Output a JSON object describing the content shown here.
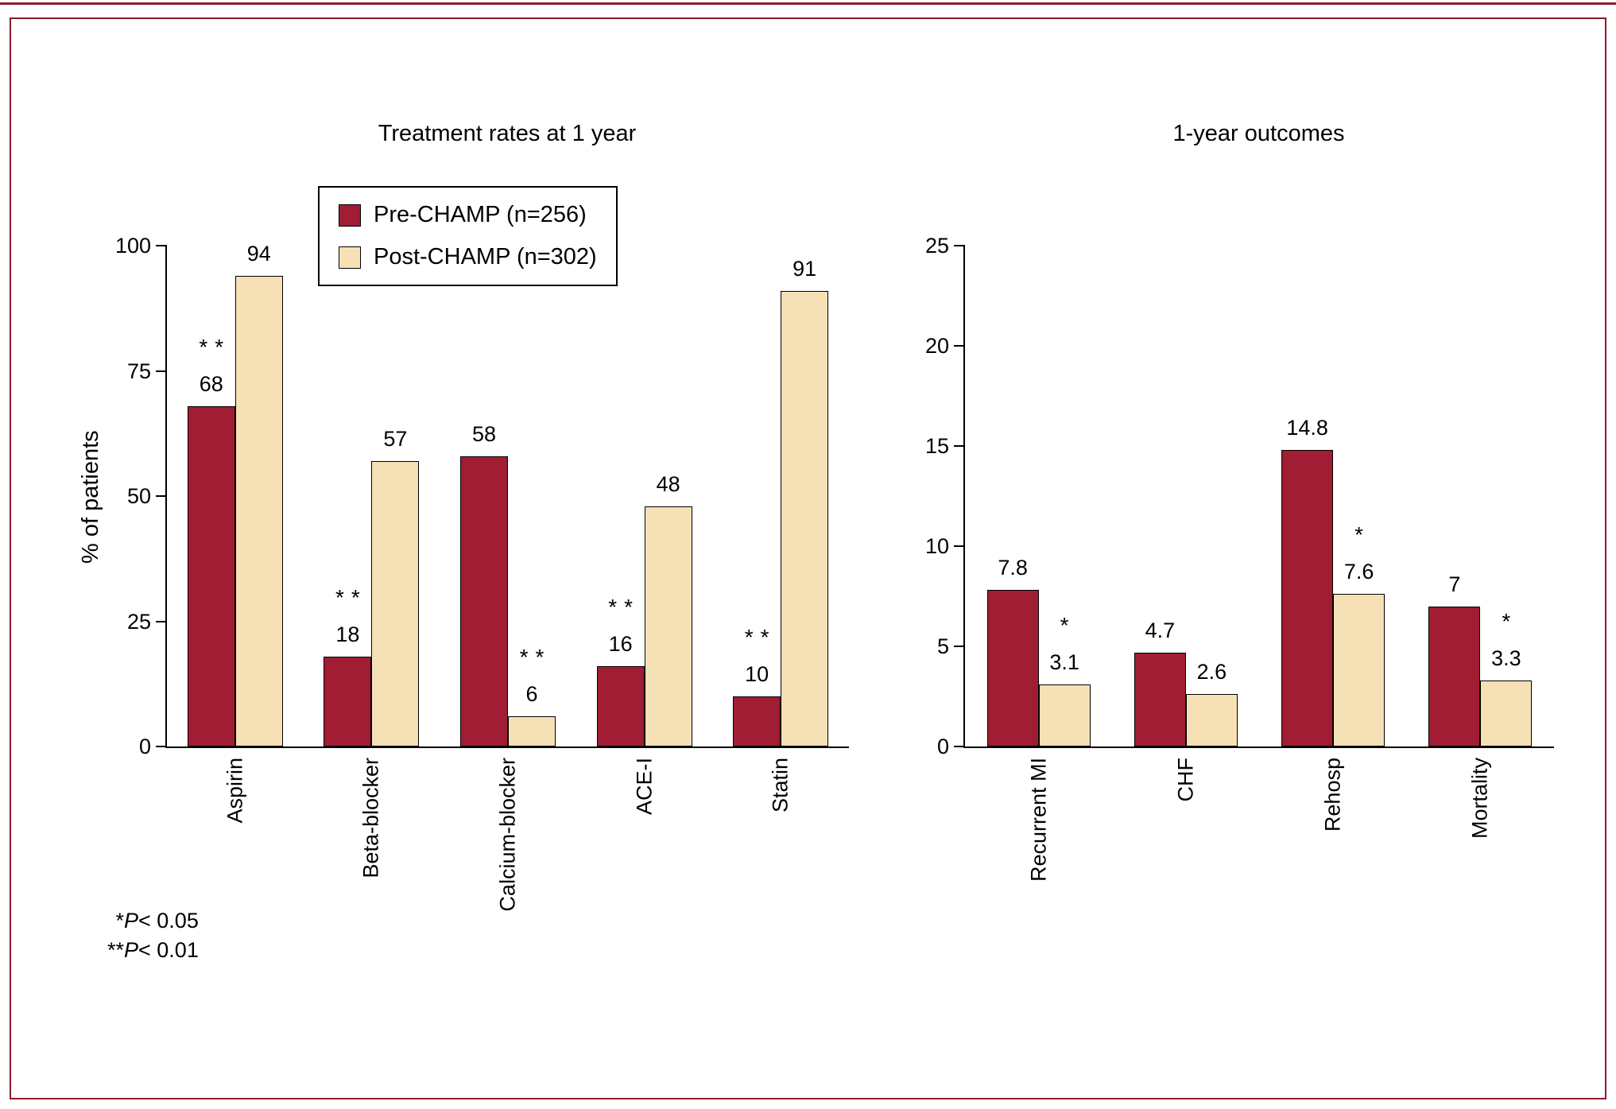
{
  "colors": {
    "pre": "#A01D33",
    "post": "#F6E0B5",
    "axis": "#000000",
    "border": "#8C1B2E"
  },
  "legend": {
    "items": [
      {
        "label": "Pre-CHAMP (n=256)",
        "color": "#A01D33"
      },
      {
        "label": "Post-CHAMP (n=302)",
        "color": "#F6E0B5"
      }
    ]
  },
  "footnotes": [
    {
      "stars": "*",
      "p": "P",
      "cond": "< 0.05"
    },
    {
      "stars": "**",
      "p": "P",
      "cond": "< 0.01"
    }
  ],
  "chart_data": [
    {
      "type": "bar",
      "title": "Treatment rates at 1 year",
      "xlabel": "",
      "ylabel": "% of patients",
      "ylim": [
        0,
        100
      ],
      "yticks": [
        0,
        25,
        50,
        75,
        100
      ],
      "grid": false,
      "legend_position": "top-left",
      "categories": [
        "Aspirin",
        "Beta-blocker",
        "Calcium-blocker",
        "ACE-I",
        "Statin"
      ],
      "series": [
        {
          "name": "Pre-CHAMP (n=256)",
          "values": [
            68,
            18,
            58,
            16,
            10
          ],
          "sig": [
            "**",
            "**",
            "",
            "**",
            "**"
          ]
        },
        {
          "name": "Post-CHAMP (n=302)",
          "values": [
            94,
            57,
            6,
            48,
            91
          ],
          "sig": [
            "",
            "",
            "**",
            "",
            ""
          ]
        }
      ]
    },
    {
      "type": "bar",
      "title": "1-year outcomes",
      "xlabel": "",
      "ylabel": "",
      "ylim": [
        0,
        25
      ],
      "yticks": [
        0,
        5,
        10,
        15,
        20,
        25
      ],
      "grid": false,
      "categories": [
        "Recurrent MI",
        "CHF",
        "Rehosp",
        "Mortality"
      ],
      "series": [
        {
          "name": "Pre-CHAMP (n=256)",
          "values": [
            7.8,
            4.7,
            14.8,
            7
          ],
          "sig": [
            "",
            "",
            "",
            ""
          ]
        },
        {
          "name": "Post-CHAMP (n=302)",
          "values": [
            3.1,
            2.6,
            7.6,
            3.3
          ],
          "sig": [
            "*",
            "",
            "*",
            "*"
          ]
        }
      ]
    }
  ]
}
